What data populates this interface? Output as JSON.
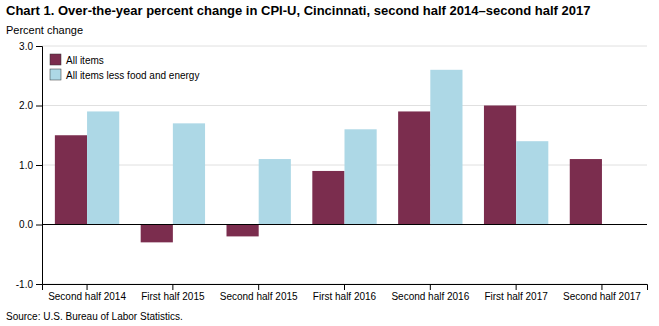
{
  "chart_data": {
    "type": "bar",
    "title": "Chart 1. Over-the-year percent change in CPI-U, Cincinnati, second half 2014–second half 2017",
    "ylabel": "Percent change",
    "annotations": [
      "Source: U.S. Bureau of Labor Statistics."
    ],
    "categories": [
      "Second half 2014",
      "First half 2015",
      "Second half 2015",
      "First half 2016",
      "Second half 2016",
      "First half 2017",
      "Second half 2017"
    ],
    "series": [
      {
        "name": "All items",
        "color": "#7B2D4E",
        "values": [
          1.5,
          -0.3,
          -0.2,
          0.9,
          1.9,
          2.0,
          1.1
        ]
      },
      {
        "name": "All items less food and energy",
        "color": "#ADD8E6",
        "values": [
          1.9,
          1.7,
          1.1,
          1.6,
          2.6,
          1.4,
          null
        ]
      }
    ],
    "ylim": [
      -1.0,
      3.0
    ],
    "yticks": [
      {
        "value": -1.0,
        "label": "-1.0"
      },
      {
        "value": 0.0,
        "label": "0.0"
      },
      {
        "value": 1.0,
        "label": "1.0"
      },
      {
        "value": 2.0,
        "label": "2.0"
      },
      {
        "value": 3.0,
        "label": "3.0"
      }
    ],
    "grid": true,
    "legend": "upper left"
  }
}
